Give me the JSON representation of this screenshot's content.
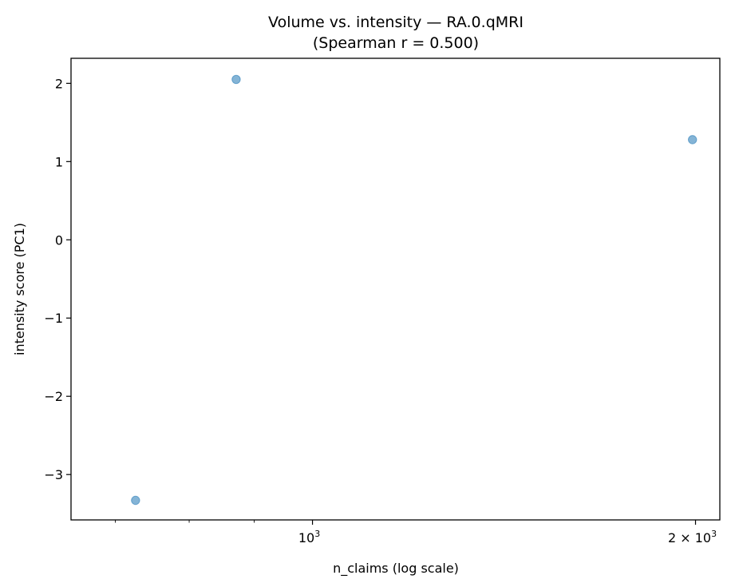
{
  "chart_data": {
    "type": "scatter",
    "title": "Volume vs. intensity — RA.0.qMRI",
    "subtitle": "(Spearman r = 0.500)",
    "xlabel": "n_claims (log scale)",
    "ylabel": "intensity score (PC1)",
    "xscale": "log",
    "xlim": [
      646,
      2090
    ],
    "ylim": [
      -3.58,
      2.32
    ],
    "grid": false,
    "legend": null,
    "x_ticks": [
      {
        "value": 1000,
        "label": "10",
        "sup": "3"
      },
      {
        "value": 2000,
        "label": "2 × 10",
        "sup": "3"
      }
    ],
    "x_minor_ticks": [
      700,
      800,
      900
    ],
    "y_ticks": [
      {
        "value": 2,
        "label": "2"
      },
      {
        "value": 1,
        "label": "1"
      },
      {
        "value": 0,
        "label": "0"
      },
      {
        "value": -1,
        "label": "−1"
      },
      {
        "value": -2,
        "label": "−2"
      },
      {
        "value": -3,
        "label": "−3"
      }
    ],
    "points": [
      {
        "x": 871,
        "y": 2.05
      },
      {
        "x": 1989,
        "y": 1.28
      },
      {
        "x": 726,
        "y": -3.33
      }
    ],
    "marker_color": "#1f77b4",
    "marker_alpha": 0.55
  }
}
